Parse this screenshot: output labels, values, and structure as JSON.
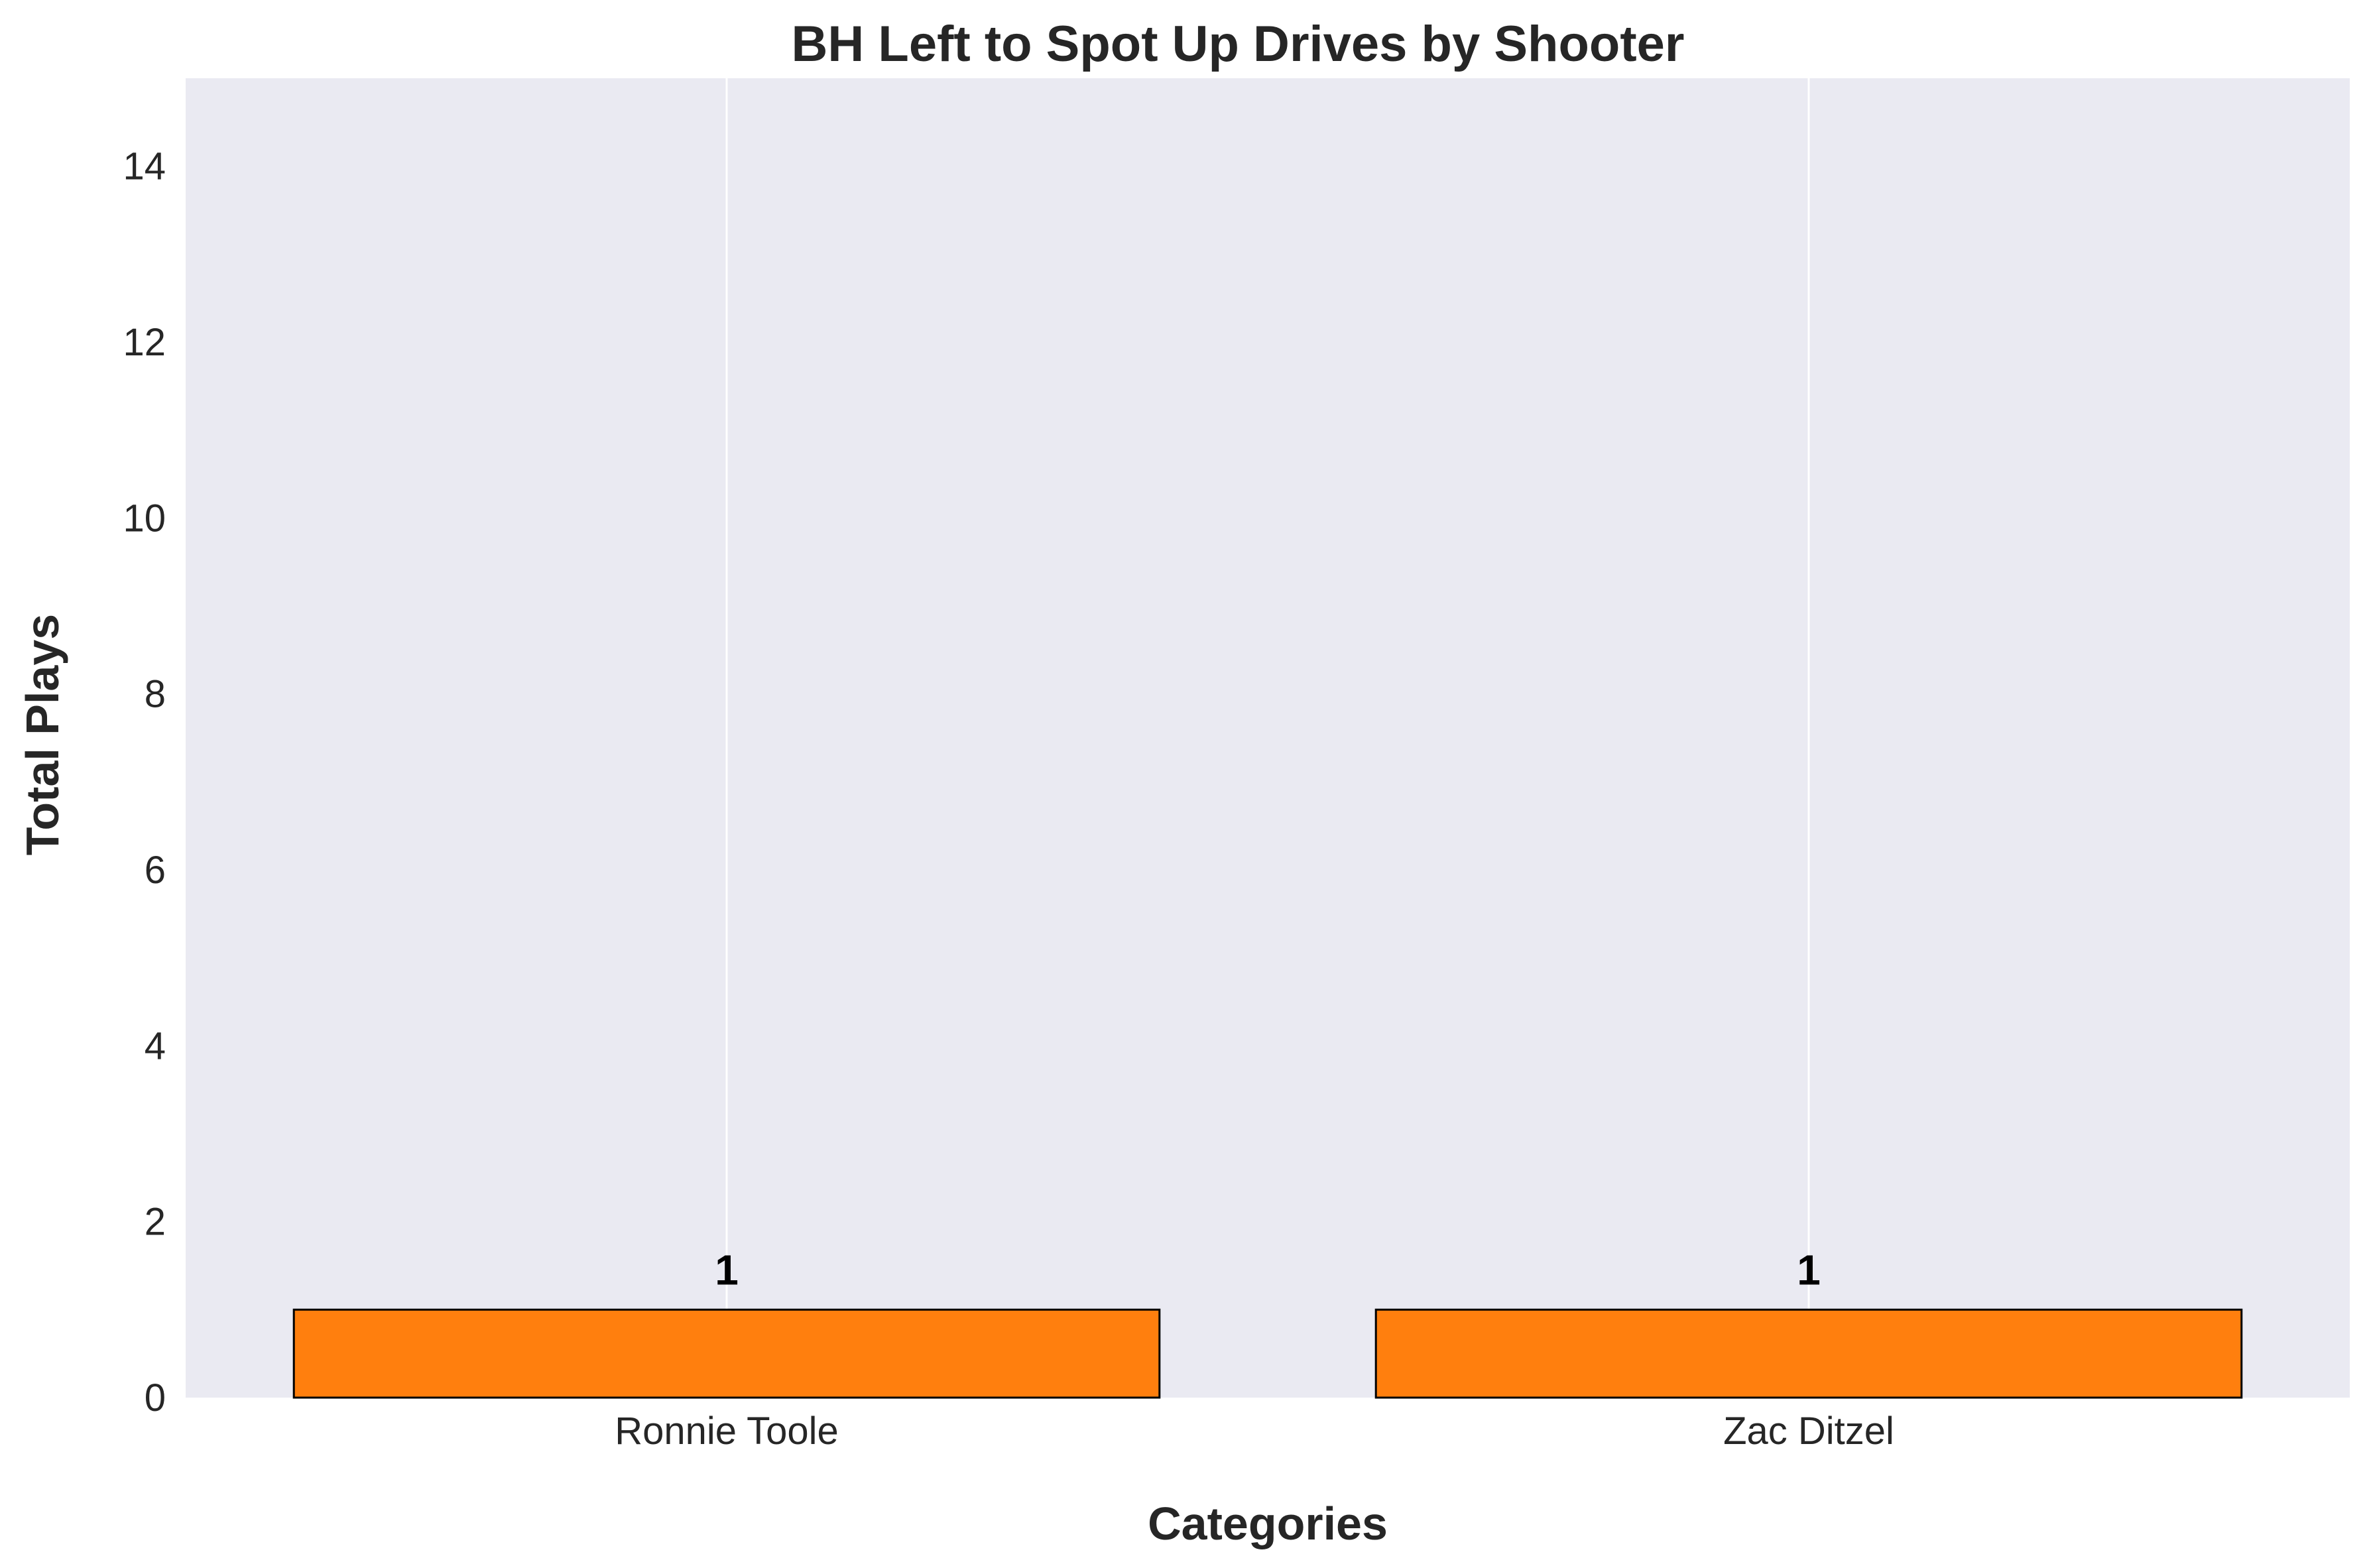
{
  "chart_data": {
    "type": "bar",
    "title": "BH Left to Spot Up Drives by Shooter",
    "xlabel": "Categories",
    "ylabel": "Total Plays",
    "categories": [
      "Ronnie Toole",
      "Zac Ditzel"
    ],
    "values": [
      1,
      1
    ],
    "data_labels": [
      "1",
      "1"
    ],
    "ylim": [
      0,
      15
    ],
    "yticks": [
      0,
      2,
      4,
      6,
      8,
      10,
      12,
      14
    ],
    "ytick_labels": [
      "0",
      "2",
      "4",
      "6",
      "8",
      "10",
      "12",
      "14"
    ],
    "grid": true,
    "grid_axis": "x",
    "legend": "none"
  },
  "colors": {
    "plot_background": "#eaeaf2",
    "bar_fill": "#ff7f0e",
    "bar_edge": "#000000",
    "grid": "#ffffff",
    "text": "#262626"
  }
}
